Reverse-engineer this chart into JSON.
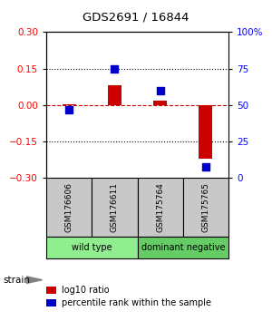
{
  "title": "GDS2691 / 16844",
  "samples": [
    "GSM176606",
    "GSM176611",
    "GSM175764",
    "GSM175765"
  ],
  "log10_ratio": [
    0.002,
    0.08,
    0.02,
    -0.22
  ],
  "percentile_rank": [
    47,
    75,
    60,
    8
  ],
  "ylim_left": [
    -0.3,
    0.3
  ],
  "ylim_right": [
    0,
    100
  ],
  "yticks_left": [
    -0.3,
    -0.15,
    0,
    0.15,
    0.3
  ],
  "yticks_right": [
    0,
    25,
    50,
    75,
    100
  ],
  "ytick_labels_right": [
    "0",
    "25",
    "50",
    "75",
    "100%"
  ],
  "groups": [
    {
      "label": "wild type",
      "indices": [
        0,
        1
      ],
      "color": "#90EE90"
    },
    {
      "label": "dominant negative",
      "indices": [
        2,
        3
      ],
      "color": "#66CC66"
    }
  ],
  "bar_color": "#CC0000",
  "dot_color": "#0000CC",
  "bar_width": 0.3,
  "dot_size": 40,
  "hline_color": "#CC0000",
  "grid_color": "black",
  "sample_box_color": "#C8C8C8",
  "strain_label": "strain",
  "legend_bar_label": "log10 ratio",
  "legend_dot_label": "percentile rank within the sample"
}
